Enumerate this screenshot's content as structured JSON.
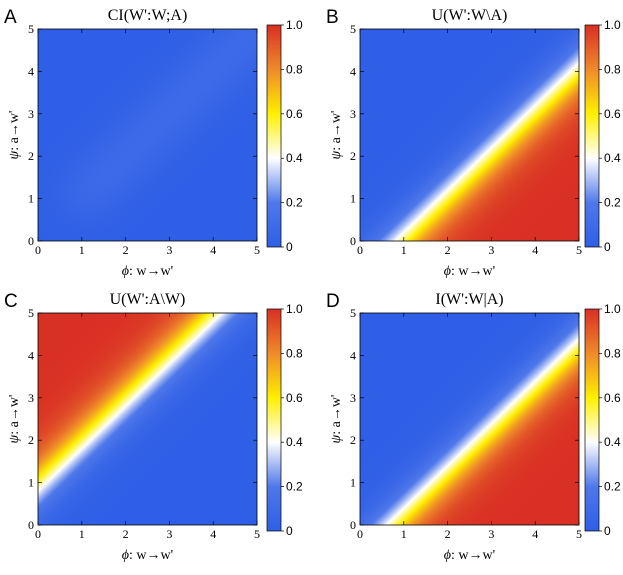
{
  "chart_data": [
    {
      "type": "heatmap",
      "panel": "A",
      "title": "CI(W':W;A)",
      "xlabel_symbol": "ϕ",
      "xlabel_text": ": w→w'",
      "ylabel_symbol": "ψ",
      "ylabel_text": ": a→w'",
      "xlim": [
        0,
        5
      ],
      "ylim": [
        0,
        5
      ],
      "x_ticks": [
        "0",
        "1",
        "2",
        "3",
        "4",
        "5"
      ],
      "y_ticks": [
        "0",
        "1",
        "2",
        "3",
        "4",
        "5"
      ],
      "colorbar": {
        "range": [
          0,
          1
        ],
        "ticks": [
          "0",
          "0.2",
          "0.4",
          "0.6",
          "0.8",
          "1.0"
        ]
      },
      "description": "near zero everywhere, slightly elevated (~0.1) along the diagonal ψ≈ϕ",
      "z_samples": {
        "along_diagonal": 0.1,
        "off_diagonal": 0.0
      }
    },
    {
      "type": "heatmap",
      "panel": "B",
      "title": "U(W':W\\A)",
      "xlabel_symbol": "ϕ",
      "xlabel_text": ": w→w'",
      "ylabel_symbol": "ψ",
      "ylabel_text": ": a→w'",
      "xlim": [
        0,
        5
      ],
      "ylim": [
        0,
        5
      ],
      "x_ticks": [
        "0",
        "1",
        "2",
        "3",
        "4",
        "5"
      ],
      "y_ticks": [
        "0",
        "1",
        "2",
        "3",
        "4",
        "5"
      ],
      "colorbar": {
        "range": [
          0,
          1
        ],
        "ticks": [
          "0",
          "0.2",
          "0.4",
          "0.6",
          "0.8",
          "1.0"
        ]
      },
      "description": "rises from 0 (upper-left) to 1 (lower-right) across the diagonal ϕ-ψ≈1",
      "z_samples": {
        "phi_5_psi_0": 1.0,
        "phi_0_psi_5": 0.0,
        "phi_2_psi_1": 0.5
      }
    },
    {
      "type": "heatmap",
      "panel": "C",
      "title": "U(W':A\\W)",
      "xlabel_symbol": "ϕ",
      "xlabel_text": ": w→w'",
      "ylabel_symbol": "ψ",
      "ylabel_text": ": a→w'",
      "xlim": [
        0,
        5
      ],
      "ylim": [
        0,
        5
      ],
      "x_ticks": [
        "0",
        "1",
        "2",
        "3",
        "4",
        "5"
      ],
      "y_ticks": [
        "0",
        "1",
        "2",
        "3",
        "4",
        "5"
      ],
      "colorbar": {
        "range": [
          0,
          1
        ],
        "ticks": [
          "0",
          "0.2",
          "0.4",
          "0.6",
          "0.8",
          "1.0"
        ]
      },
      "description": "rises from 0 (lower-right) to 1 (upper-left) across the diagonal ψ-ϕ≈1",
      "z_samples": {
        "phi_0_psi_5": 1.0,
        "phi_5_psi_0": 0.0,
        "phi_1_psi_2": 0.5
      }
    },
    {
      "type": "heatmap",
      "panel": "D",
      "title": "I(W':W|A)",
      "xlabel_symbol": "ϕ",
      "xlabel_text": ": w→w'",
      "ylabel_symbol": "ψ",
      "ylabel_text": ": a→w'",
      "xlim": [
        0,
        5
      ],
      "ylim": [
        0,
        5
      ],
      "x_ticks": [
        "0",
        "1",
        "2",
        "3",
        "4",
        "5"
      ],
      "y_ticks": [
        "0",
        "1",
        "2",
        "3",
        "4",
        "5"
      ],
      "colorbar": {
        "range": [
          0,
          1
        ],
        "ticks": [
          "0",
          "0.2",
          "0.4",
          "0.6",
          "0.8",
          "1.0"
        ]
      },
      "description": "same structure as B, slightly higher near the diagonal",
      "z_samples": {
        "phi_5_psi_0": 1.0,
        "phi_0_psi_5": 0.0,
        "phi_2_psi_1": 0.55
      }
    }
  ],
  "colormap": {
    "name": "blue-white-yellow-red",
    "stops": [
      {
        "v": 0.0,
        "color": "#2f5fe6"
      },
      {
        "v": 0.2,
        "color": "#4f78ea"
      },
      {
        "v": 0.4,
        "color": "#ffffff"
      },
      {
        "v": 0.6,
        "color": "#fff000"
      },
      {
        "v": 0.8,
        "color": "#ef8a2a"
      },
      {
        "v": 1.0,
        "color": "#d93025"
      }
    ]
  }
}
